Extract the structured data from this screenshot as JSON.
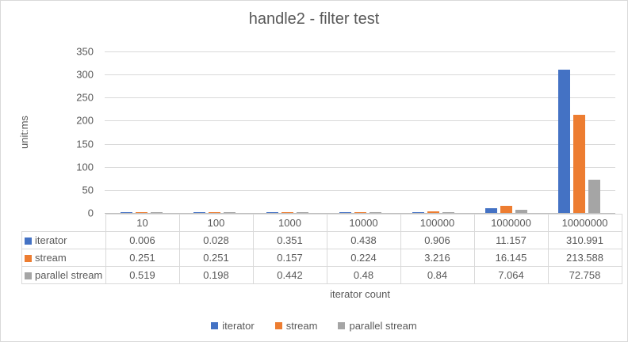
{
  "chart_data": {
    "type": "bar",
    "title": "handle2 - filter test",
    "xlabel": "iterator count",
    "ylabel": "unit:ms",
    "ylim": [
      0,
      350
    ],
    "y_ticks": [
      350,
      300,
      250,
      200,
      150,
      100,
      50,
      0
    ],
    "categories": [
      "10",
      "100",
      "1000",
      "10000",
      "100000",
      "1000000",
      "10000000"
    ],
    "series": [
      {
        "name": "iterator",
        "color": "#4472C4",
        "values": [
          0.006,
          0.028,
          0.351,
          0.438,
          0.906,
          11.157,
          310.991
        ]
      },
      {
        "name": "stream",
        "color": "#ED7D31",
        "values": [
          0.251,
          0.251,
          0.157,
          0.224,
          3.216,
          16.145,
          213.588
        ]
      },
      {
        "name": "parallel stream",
        "color": "#A5A5A5",
        "values": [
          0.519,
          0.198,
          0.442,
          0.48,
          0.84,
          7.064,
          72.758
        ]
      }
    ],
    "grid": true,
    "legend_position": "bottom",
    "data_table": true,
    "text_color": "#595959",
    "gridline_color": "#D9D9D9",
    "table_border_color": "#D9D9D9"
  }
}
